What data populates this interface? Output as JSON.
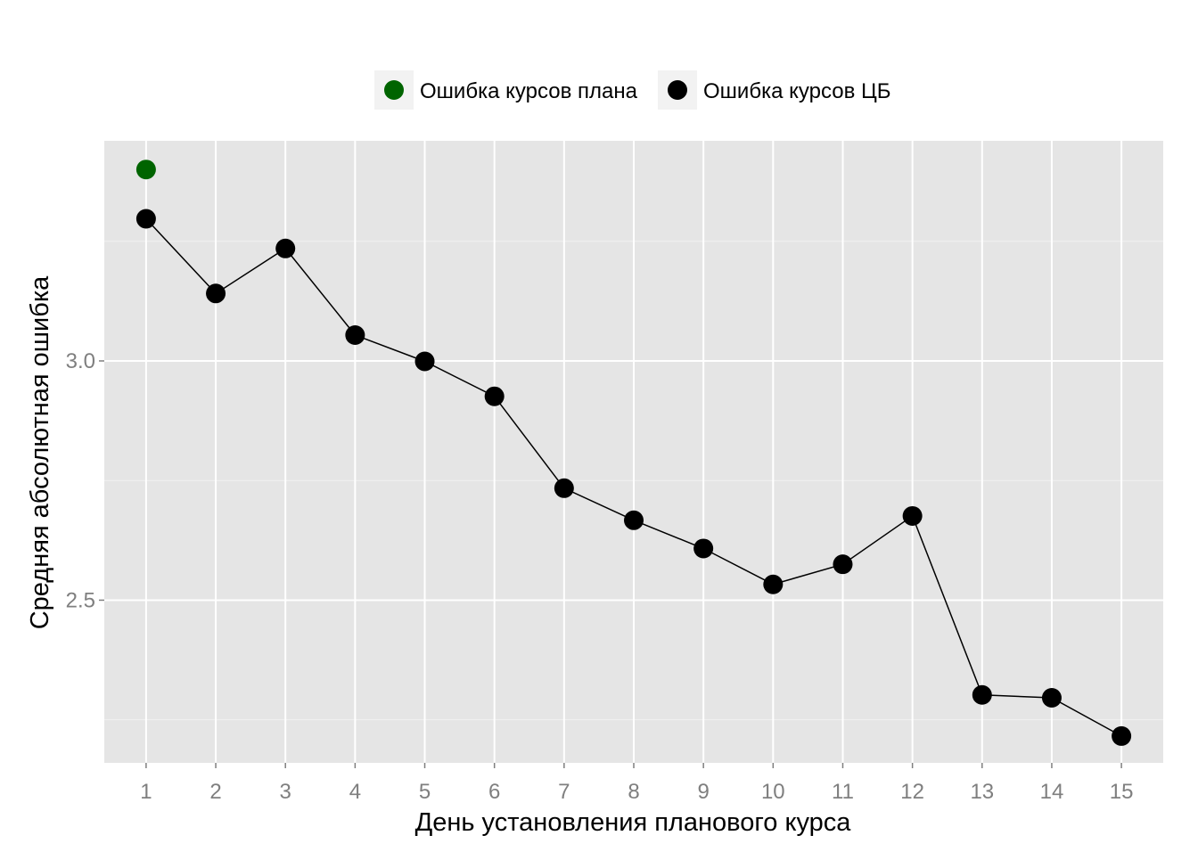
{
  "chart_data": {
    "type": "line",
    "title": "",
    "xlabel": "День установления планового курса",
    "ylabel": "Средняя абсолютная ошибка",
    "x": [
      1,
      2,
      3,
      4,
      5,
      6,
      7,
      8,
      9,
      10,
      11,
      12,
      13,
      14,
      15
    ],
    "x_tick_labels": [
      "1",
      "2",
      "3",
      "4",
      "5",
      "6",
      "7",
      "8",
      "9",
      "10",
      "11",
      "12",
      "13",
      "14",
      "15"
    ],
    "y_ticks": [
      2.5,
      3.0
    ],
    "y_tick_labels": [
      "2.5",
      "3.0"
    ],
    "xlim": [
      0.4,
      15.6
    ],
    "ylim": [
      2.16,
      3.46
    ],
    "grid": true,
    "legend_position": "top",
    "series": [
      {
        "name": "Ошибка курсов плана",
        "color": "#006400",
        "line": false,
        "points": [
          [
            1,
            3.4
          ]
        ]
      },
      {
        "name": "Ошибка курсов ЦБ",
        "color": "#000000",
        "line": true,
        "points": [
          [
            1,
            3.297
          ],
          [
            2,
            3.141
          ],
          [
            3,
            3.235
          ],
          [
            4,
            3.054
          ],
          [
            5,
            2.999
          ],
          [
            6,
            2.926
          ],
          [
            7,
            2.734
          ],
          [
            8,
            2.667
          ],
          [
            9,
            2.608
          ],
          [
            10,
            2.533
          ],
          [
            11,
            2.575
          ],
          [
            12,
            2.676
          ],
          [
            13,
            2.302
          ],
          [
            14,
            2.296
          ],
          [
            15,
            2.216
          ]
        ]
      }
    ]
  }
}
